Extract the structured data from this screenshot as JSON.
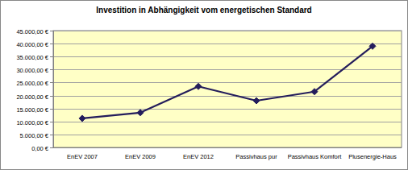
{
  "chart_data": {
    "type": "line",
    "title": "Investition in Abhängigkeit vom energetischen Standard",
    "categories": [
      "EnEV 2007",
      "EnEV 2009",
      "EnEV 2012",
      "Passivhaus pur",
      "Passivhaus Komfort",
      "Plusenergie-Haus"
    ],
    "values": [
      11200,
      13400,
      23500,
      18000,
      21500,
      39000
    ],
    "color": "#241d5c",
    "marker": "diamond",
    "grid": true,
    "ylim": [
      0,
      45000
    ],
    "yticks": [
      {
        "value": 0,
        "label": "0,00 €"
      },
      {
        "value": 5000,
        "label": "5.000,00 €"
      },
      {
        "value": 10000,
        "label": "10.000,00 €"
      },
      {
        "value": 15000,
        "label": "15.000,00 €"
      },
      {
        "value": 20000,
        "label": "20.000,00 €"
      },
      {
        "value": 25000,
        "label": "25.000,00 €"
      },
      {
        "value": 30000,
        "label": "30.000,00 €"
      },
      {
        "value": 35000,
        "label": "35.000,00 €"
      },
      {
        "value": 40000,
        "label": "40.000,00 €"
      },
      {
        "value": 45000,
        "label": "45.000,00 €"
      }
    ]
  }
}
